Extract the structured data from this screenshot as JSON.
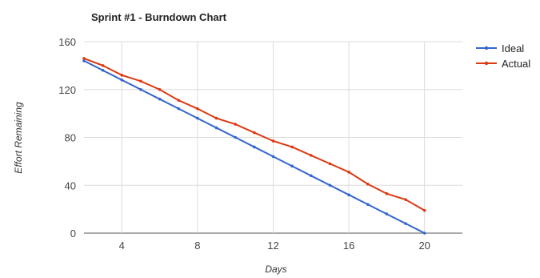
{
  "chart_data": {
    "type": "line",
    "title": "Sprint #1 - Burndown Chart",
    "xlabel": "Days",
    "ylabel": "Effort Remaining",
    "xlim": [
      2,
      22
    ],
    "ylim": [
      0,
      160
    ],
    "x_ticks": [
      4,
      8,
      12,
      16,
      20
    ],
    "y_ticks": [
      0,
      40,
      80,
      120,
      160
    ],
    "grid": true,
    "legend_position": "right",
    "series": [
      {
        "name": "Ideal",
        "color": "#3366cc",
        "x": [
          2,
          3,
          4,
          5,
          6,
          7,
          8,
          9,
          10,
          11,
          12,
          13,
          14,
          15,
          16,
          17,
          18,
          19,
          20
        ],
        "y": [
          144,
          136,
          128,
          120,
          112,
          104,
          96,
          88,
          80,
          72,
          64,
          56,
          48,
          40,
          32,
          24,
          16,
          8,
          0
        ]
      },
      {
        "name": "Actual",
        "color": "#dc3912",
        "x": [
          2,
          3,
          4,
          5,
          6,
          7,
          8,
          9,
          10,
          11,
          12,
          13,
          14,
          15,
          16,
          17,
          18,
          19,
          20
        ],
        "y": [
          146,
          140,
          132,
          127,
          120,
          111,
          104,
          96,
          91,
          84,
          77,
          72,
          65,
          58,
          51,
          41,
          33,
          28,
          19
        ]
      }
    ]
  }
}
